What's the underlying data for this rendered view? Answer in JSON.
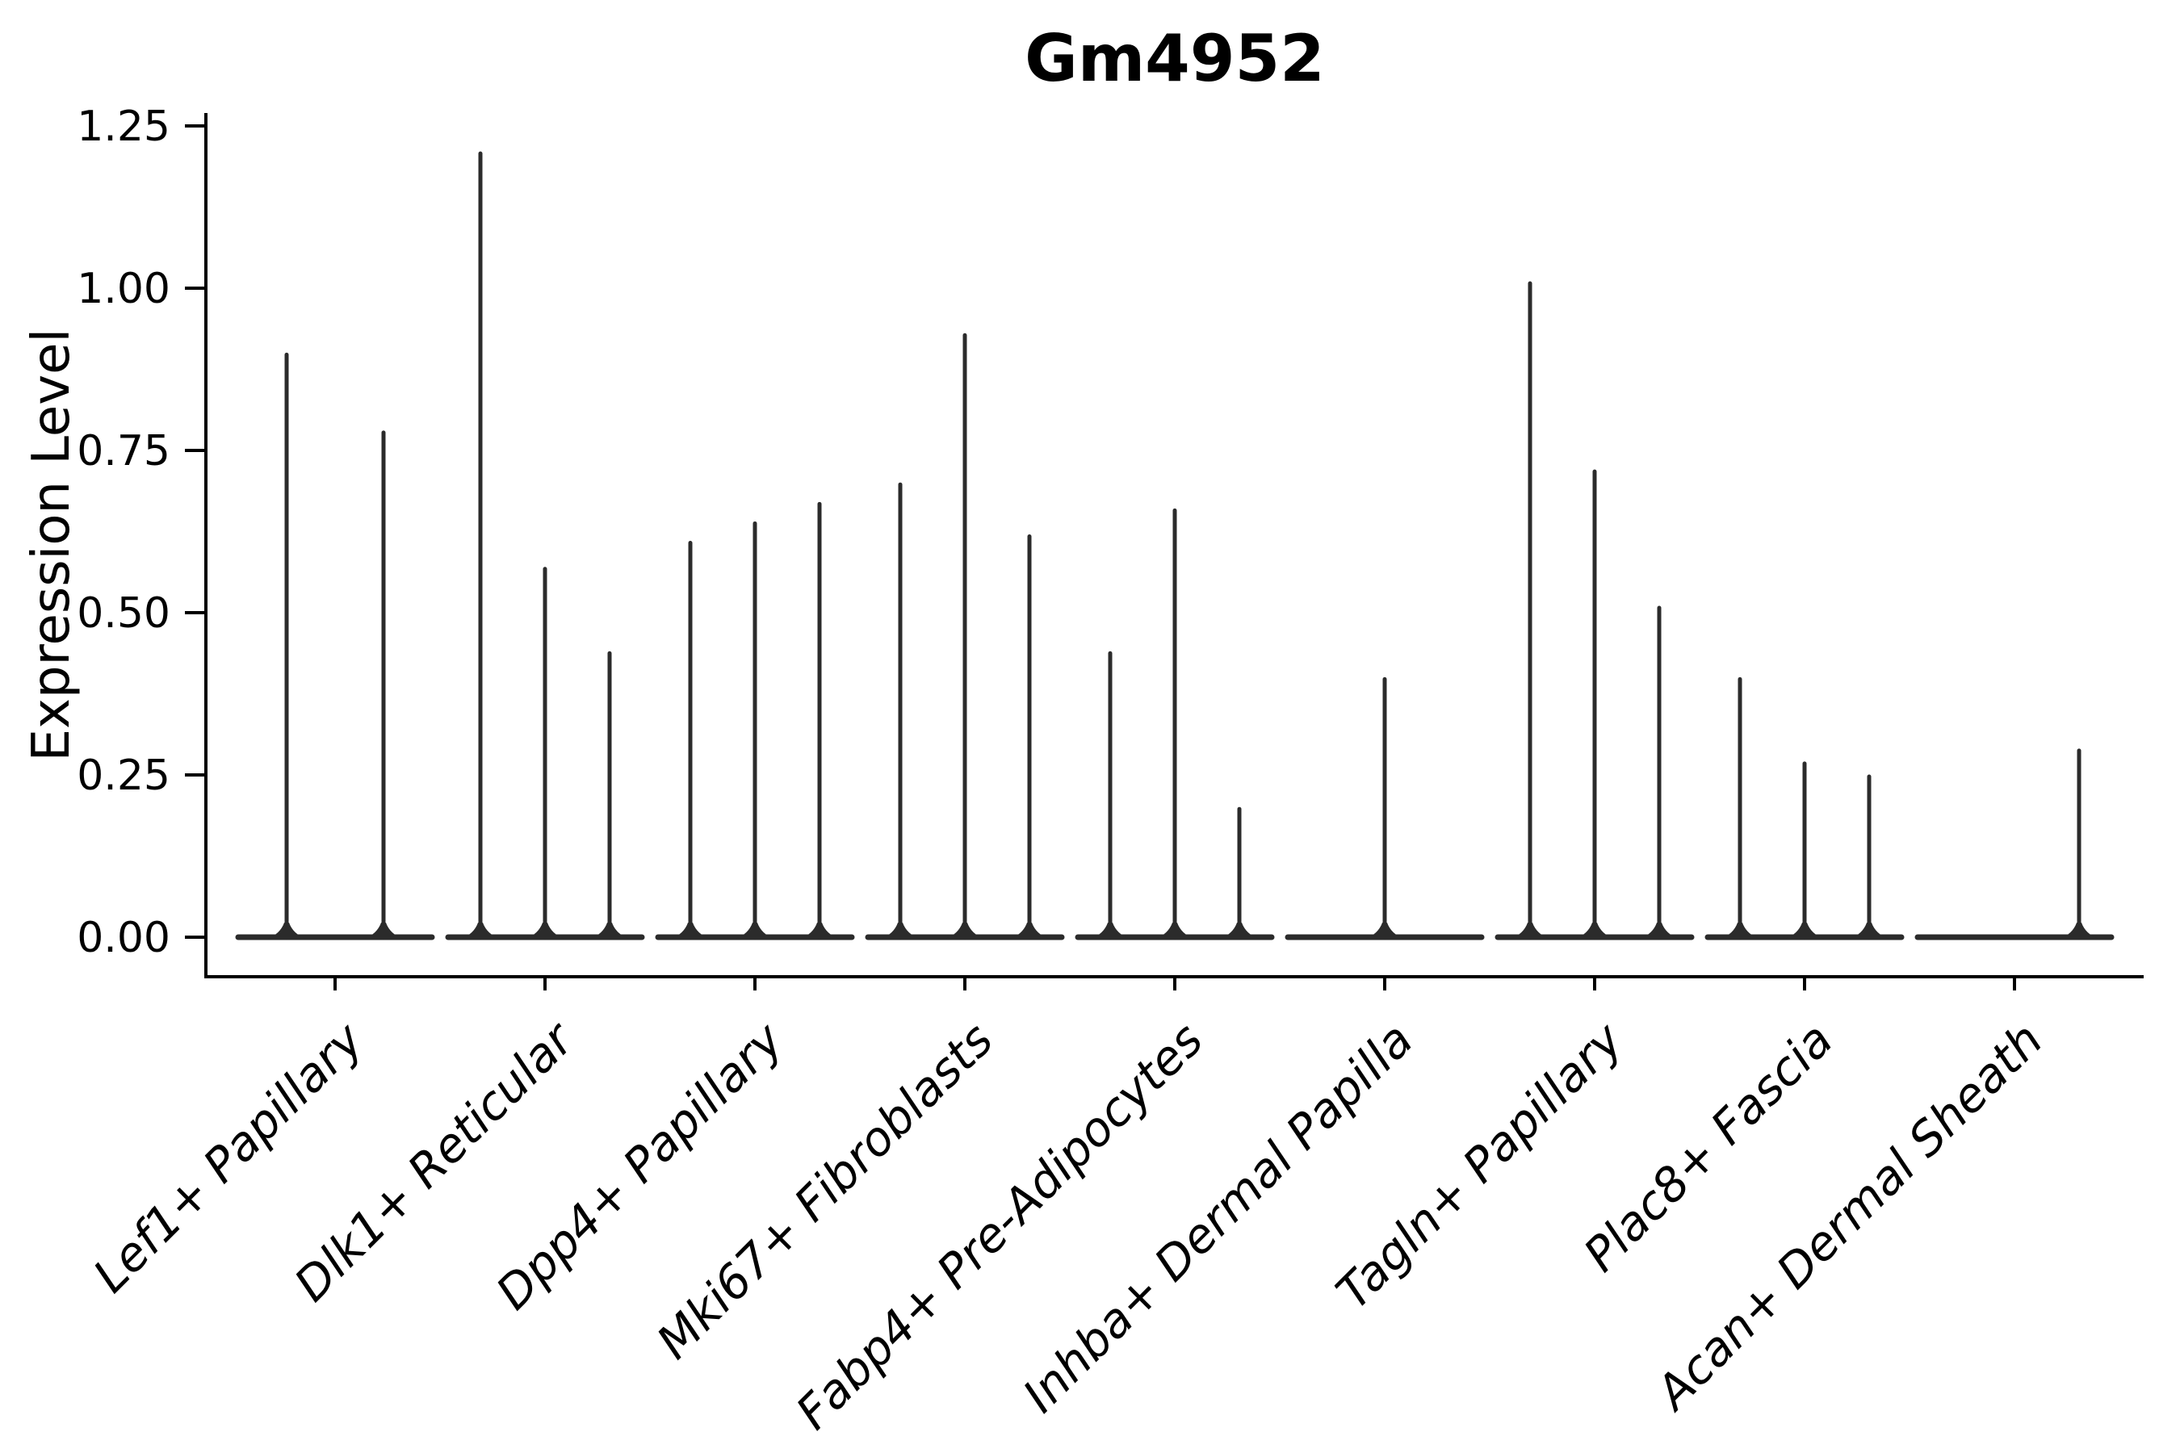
{
  "chart_data": {
    "type": "violin",
    "title": "Gm4952",
    "xlabel": "",
    "ylabel": "Expression Level",
    "ylim": [
      -0.06,
      1.27
    ],
    "yticks": [
      0.0,
      0.25,
      0.5,
      0.75,
      1.0,
      1.25
    ],
    "ytick_labels": [
      "0.00",
      "0.25",
      "0.50",
      "0.75",
      "1.00",
      "1.25"
    ],
    "grid": "off",
    "legend": "none",
    "categories": [
      "Lef1+ Papillary",
      "Dlk1+ Reticular",
      "Dpp4+ Papillary",
      "Mki67+ Fibroblasts",
      "Fabp4+ Pre-Adipocytes",
      "Inhba+ Dermal Papilla",
      "Tagln+ Papillary",
      "Plac8+ Fascia",
      "Acan+ Dermal Sheath"
    ],
    "groups": [
      {
        "category": "Lef1+ Papillary",
        "violin_maxima": [
          0.9,
          0.78
        ]
      },
      {
        "category": "Dlk1+ Reticular",
        "violin_maxima": [
          1.21,
          0.57,
          0.44
        ]
      },
      {
        "category": "Dpp4+ Papillary",
        "violin_maxima": [
          0.61,
          0.64,
          0.67
        ]
      },
      {
        "category": "Mki67+ Fibroblasts",
        "violin_maxima": [
          0.7,
          0.93,
          0.62
        ]
      },
      {
        "category": "Fabp4+ Pre-Adipocytes",
        "violin_maxima": [
          0.44,
          0.66,
          0.2
        ]
      },
      {
        "category": "Inhba+ Dermal Papilla",
        "violin_maxima": [
          0.0,
          0.4,
          0.0
        ]
      },
      {
        "category": "Tagln+ Papillary",
        "violin_maxima": [
          1.01,
          0.72,
          0.51
        ]
      },
      {
        "category": "Plac8+ Fascia",
        "violin_maxima": [
          0.4,
          0.27,
          0.25
        ]
      },
      {
        "category": "Acan+ Dermal Sheath",
        "violin_maxima": [
          0.0,
          0.0,
          0.29
        ]
      }
    ],
    "colors": {
      "axis": "#000000",
      "violin": "#2b2b2b",
      "text": "#000000",
      "background": "#ffffff"
    }
  }
}
